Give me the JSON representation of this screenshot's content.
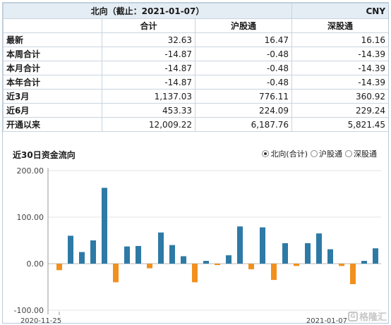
{
  "table": {
    "title": "北向（截止：2021-01-07）",
    "currency": "CNY",
    "columns": [
      "合计",
      "沪股通",
      "深股通"
    ],
    "rows": [
      {
        "label": "最新",
        "values": [
          "32.63",
          "16.47",
          "16.16"
        ]
      },
      {
        "label": "本周合计",
        "values": [
          "-14.87",
          "-0.48",
          "-14.39"
        ]
      },
      {
        "label": "本月合计",
        "values": [
          "-14.87",
          "-0.48",
          "-14.39"
        ]
      },
      {
        "label": "本年合计",
        "values": [
          "-14.87",
          "-0.48",
          "-14.39"
        ]
      },
      {
        "label": "近3月",
        "values": [
          "1,137.03",
          "776.11",
          "360.92"
        ]
      },
      {
        "label": "近6月",
        "values": [
          "453.33",
          "224.09",
          "229.24"
        ]
      },
      {
        "label": "开通以来",
        "values": [
          "12,009.22",
          "6,187.76",
          "5,821.45"
        ]
      }
    ]
  },
  "chart_title": "近30日资金流向",
  "legend": [
    {
      "label": "北向(合计)",
      "checked": true
    },
    {
      "label": "沪股通",
      "checked": false
    },
    {
      "label": "深股通",
      "checked": false
    }
  ],
  "watermark": "格隆汇",
  "chart_data": {
    "type": "bar",
    "ylim": [
      -100,
      200
    ],
    "yticks": [
      200,
      100,
      0,
      -100
    ],
    "ytick_labels": [
      "200.00",
      "100.00",
      "0.00",
      "-100.00"
    ],
    "grid": true,
    "x_labels": [
      "2020-11-25"
    ],
    "x_labels_right": "2021-01-07",
    "colors": {
      "positive": "#2e7aa6",
      "negative": "#f2901e"
    },
    "values": [
      -14,
      60,
      25,
      50,
      163,
      -40,
      37,
      38,
      -10,
      67,
      40,
      16,
      -40,
      6,
      -3,
      18,
      80,
      -12,
      78,
      -35,
      44,
      -5,
      44,
      65,
      31,
      -5,
      -44,
      6,
      33
    ]
  }
}
